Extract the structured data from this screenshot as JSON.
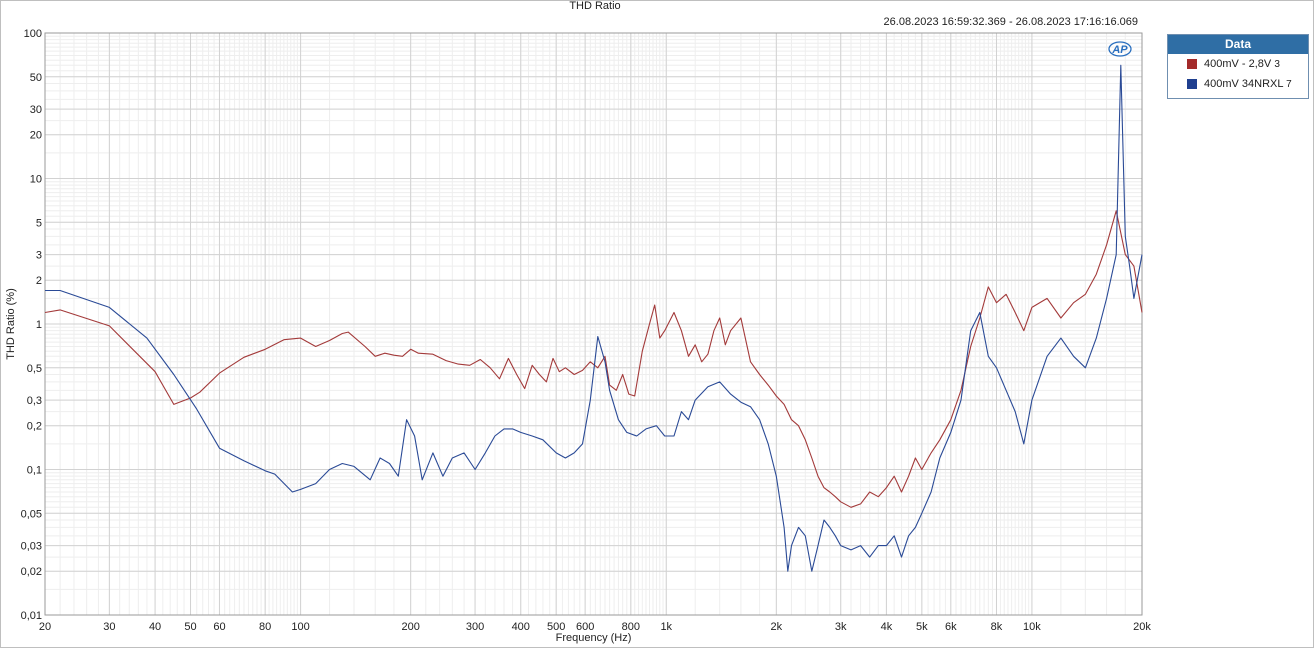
{
  "chart_data": {
    "type": "line",
    "title": "THD Ratio",
    "timestamp": "26.08.2023 16:59:32.369 - 26.08.2023 17:16:16.069",
    "xlabel": "Frequency (Hz)",
    "ylabel": "THD Ratio (%)",
    "x_scale": "log",
    "y_scale": "log",
    "xlim": [
      20,
      20000
    ],
    "ylim": [
      0.01,
      100
    ],
    "x_ticks": [
      {
        "v": 20,
        "l": "20"
      },
      {
        "v": 30,
        "l": "30"
      },
      {
        "v": 40,
        "l": "40"
      },
      {
        "v": 50,
        "l": "50"
      },
      {
        "v": 60,
        "l": "60"
      },
      {
        "v": 80,
        "l": "80"
      },
      {
        "v": 100,
        "l": "100"
      },
      {
        "v": 200,
        "l": "200"
      },
      {
        "v": 300,
        "l": "300"
      },
      {
        "v": 400,
        "l": "400"
      },
      {
        "v": 500,
        "l": "500"
      },
      {
        "v": 600,
        "l": "600"
      },
      {
        "v": 800,
        "l": "800"
      },
      {
        "v": 1000,
        "l": "1k"
      },
      {
        "v": 2000,
        "l": "2k"
      },
      {
        "v": 3000,
        "l": "3k"
      },
      {
        "v": 4000,
        "l": "4k"
      },
      {
        "v": 5000,
        "l": "5k"
      },
      {
        "v": 6000,
        "l": "6k"
      },
      {
        "v": 8000,
        "l": "8k"
      },
      {
        "v": 10000,
        "l": "10k"
      },
      {
        "v": 20000,
        "l": "20k"
      }
    ],
    "y_ticks": [
      {
        "v": 100,
        "l": "100"
      },
      {
        "v": 50,
        "l": "50"
      },
      {
        "v": 30,
        "l": "30"
      },
      {
        "v": 20,
        "l": "20"
      },
      {
        "v": 10,
        "l": "10"
      },
      {
        "v": 5,
        "l": "5"
      },
      {
        "v": 3,
        "l": "3"
      },
      {
        "v": 2,
        "l": "2"
      },
      {
        "v": 1,
        "l": "1"
      },
      {
        "v": 0.5,
        "l": "0,5"
      },
      {
        "v": 0.3,
        "l": "0,3"
      },
      {
        "v": 0.2,
        "l": "0,2"
      },
      {
        "v": 0.1,
        "l": "0,1"
      },
      {
        "v": 0.05,
        "l": "0,05"
      },
      {
        "v": 0.03,
        "l": "0,03"
      },
      {
        "v": 0.02,
        "l": "0,02"
      },
      {
        "v": 0.01,
        "l": "0,01"
      }
    ],
    "grid": true,
    "legend": {
      "title": "Data",
      "position": "right"
    },
    "series": [
      {
        "name": "400mV - 2,8V",
        "suffix": "3",
        "color": "#a33a3a",
        "points": [
          [
            20,
            1.2
          ],
          [
            22,
            1.25
          ],
          [
            30,
            0.97
          ],
          [
            40,
            0.47
          ],
          [
            45,
            0.28
          ],
          [
            50,
            0.31
          ],
          [
            53,
            0.34
          ],
          [
            60,
            0.46
          ],
          [
            70,
            0.59
          ],
          [
            80,
            0.67
          ],
          [
            90,
            0.78
          ],
          [
            100,
            0.8
          ],
          [
            110,
            0.7
          ],
          [
            120,
            0.77
          ],
          [
            130,
            0.86
          ],
          [
            135,
            0.88
          ],
          [
            150,
            0.7
          ],
          [
            160,
            0.6
          ],
          [
            170,
            0.63
          ],
          [
            180,
            0.61
          ],
          [
            190,
            0.6
          ],
          [
            200,
            0.67
          ],
          [
            210,
            0.63
          ],
          [
            230,
            0.62
          ],
          [
            250,
            0.56
          ],
          [
            270,
            0.53
          ],
          [
            290,
            0.52
          ],
          [
            310,
            0.57
          ],
          [
            330,
            0.5
          ],
          [
            350,
            0.42
          ],
          [
            370,
            0.58
          ],
          [
            390,
            0.45
          ],
          [
            410,
            0.36
          ],
          [
            430,
            0.52
          ],
          [
            450,
            0.45
          ],
          [
            470,
            0.4
          ],
          [
            490,
            0.58
          ],
          [
            510,
            0.47
          ],
          [
            530,
            0.5
          ],
          [
            560,
            0.45
          ],
          [
            590,
            0.48
          ],
          [
            620,
            0.55
          ],
          [
            650,
            0.5
          ],
          [
            680,
            0.6
          ],
          [
            700,
            0.38
          ],
          [
            730,
            0.35
          ],
          [
            760,
            0.45
          ],
          [
            790,
            0.33
          ],
          [
            820,
            0.32
          ],
          [
            860,
            0.65
          ],
          [
            900,
            1.0
          ],
          [
            930,
            1.35
          ],
          [
            960,
            0.8
          ],
          [
            990,
            0.9
          ],
          [
            1050,
            1.2
          ],
          [
            1100,
            0.9
          ],
          [
            1150,
            0.6
          ],
          [
            1200,
            0.72
          ],
          [
            1250,
            0.55
          ],
          [
            1300,
            0.62
          ],
          [
            1350,
            0.9
          ],
          [
            1400,
            1.1
          ],
          [
            1450,
            0.72
          ],
          [
            1500,
            0.9
          ],
          [
            1600,
            1.1
          ],
          [
            1700,
            0.55
          ],
          [
            1800,
            0.45
          ],
          [
            1900,
            0.38
          ],
          [
            2000,
            0.32
          ],
          [
            2100,
            0.28
          ],
          [
            2200,
            0.22
          ],
          [
            2300,
            0.2
          ],
          [
            2400,
            0.16
          ],
          [
            2500,
            0.12
          ],
          [
            2600,
            0.09
          ],
          [
            2700,
            0.075
          ],
          [
            2800,
            0.07
          ],
          [
            2900,
            0.065
          ],
          [
            3000,
            0.06
          ],
          [
            3200,
            0.055
          ],
          [
            3400,
            0.058
          ],
          [
            3600,
            0.07
          ],
          [
            3800,
            0.065
          ],
          [
            4000,
            0.075
          ],
          [
            4200,
            0.09
          ],
          [
            4400,
            0.07
          ],
          [
            4600,
            0.09
          ],
          [
            4800,
            0.12
          ],
          [
            5000,
            0.1
          ],
          [
            5300,
            0.13
          ],
          [
            5600,
            0.16
          ],
          [
            6000,
            0.22
          ],
          [
            6400,
            0.35
          ],
          [
            6800,
            0.7
          ],
          [
            7200,
            1.1
          ],
          [
            7600,
            1.8
          ],
          [
            8000,
            1.4
          ],
          [
            8500,
            1.6
          ],
          [
            9000,
            1.2
          ],
          [
            9500,
            0.9
          ],
          [
            10000,
            1.3
          ],
          [
            11000,
            1.5
          ],
          [
            12000,
            1.1
          ],
          [
            13000,
            1.4
          ],
          [
            14000,
            1.6
          ],
          [
            15000,
            2.2
          ],
          [
            16000,
            3.5
          ],
          [
            17000,
            6
          ],
          [
            18000,
            3
          ],
          [
            19000,
            2.5
          ],
          [
            20000,
            1.2
          ]
        ]
      },
      {
        "name": "400mV 34NRXL",
        "suffix": "7",
        "color": "#2a4a96",
        "points": [
          [
            20,
            1.7
          ],
          [
            22,
            1.7
          ],
          [
            30,
            1.3
          ],
          [
            38,
            0.8
          ],
          [
            45,
            0.45
          ],
          [
            52,
            0.26
          ],
          [
            60,
            0.14
          ],
          [
            70,
            0.115
          ],
          [
            80,
            0.098
          ],
          [
            85,
            0.093
          ],
          [
            95,
            0.07
          ],
          [
            100,
            0.073
          ],
          [
            110,
            0.08
          ],
          [
            120,
            0.1
          ],
          [
            130,
            0.11
          ],
          [
            140,
            0.105
          ],
          [
            155,
            0.085
          ],
          [
            165,
            0.12
          ],
          [
            175,
            0.11
          ],
          [
            185,
            0.09
          ],
          [
            195,
            0.22
          ],
          [
            205,
            0.17
          ],
          [
            215,
            0.085
          ],
          [
            230,
            0.13
          ],
          [
            245,
            0.09
          ],
          [
            260,
            0.12
          ],
          [
            280,
            0.13
          ],
          [
            300,
            0.1
          ],
          [
            320,
            0.13
          ],
          [
            340,
            0.17
          ],
          [
            360,
            0.19
          ],
          [
            380,
            0.19
          ],
          [
            400,
            0.18
          ],
          [
            430,
            0.17
          ],
          [
            460,
            0.16
          ],
          [
            500,
            0.13
          ],
          [
            530,
            0.12
          ],
          [
            560,
            0.13
          ],
          [
            590,
            0.15
          ],
          [
            620,
            0.3
          ],
          [
            650,
            0.82
          ],
          [
            680,
            0.55
          ],
          [
            700,
            0.35
          ],
          [
            740,
            0.22
          ],
          [
            780,
            0.18
          ],
          [
            830,
            0.17
          ],
          [
            880,
            0.19
          ],
          [
            940,
            0.2
          ],
          [
            990,
            0.17
          ],
          [
            1050,
            0.17
          ],
          [
            1100,
            0.25
          ],
          [
            1150,
            0.22
          ],
          [
            1200,
            0.3
          ],
          [
            1300,
            0.37
          ],
          [
            1400,
            0.4
          ],
          [
            1500,
            0.33
          ],
          [
            1600,
            0.29
          ],
          [
            1700,
            0.27
          ],
          [
            1800,
            0.22
          ],
          [
            1900,
            0.15
          ],
          [
            2000,
            0.09
          ],
          [
            2100,
            0.04
          ],
          [
            2150,
            0.02
          ],
          [
            2200,
            0.03
          ],
          [
            2300,
            0.04
          ],
          [
            2400,
            0.035
          ],
          [
            2500,
            0.02
          ],
          [
            2600,
            0.03
          ],
          [
            2700,
            0.045
          ],
          [
            2800,
            0.04
          ],
          [
            2900,
            0.035
          ],
          [
            3000,
            0.03
          ],
          [
            3200,
            0.028
          ],
          [
            3400,
            0.03
          ],
          [
            3600,
            0.025
          ],
          [
            3800,
            0.03
          ],
          [
            4000,
            0.03
          ],
          [
            4200,
            0.035
          ],
          [
            4400,
            0.025
          ],
          [
            4600,
            0.035
          ],
          [
            4800,
            0.04
          ],
          [
            5000,
            0.05
          ],
          [
            5300,
            0.07
          ],
          [
            5600,
            0.12
          ],
          [
            6000,
            0.18
          ],
          [
            6400,
            0.3
          ],
          [
            6800,
            0.9
          ],
          [
            7200,
            1.2
          ],
          [
            7600,
            0.6
          ],
          [
            8000,
            0.5
          ],
          [
            8500,
            0.35
          ],
          [
            9000,
            0.25
          ],
          [
            9500,
            0.15
          ],
          [
            10000,
            0.3
          ],
          [
            11000,
            0.6
          ],
          [
            12000,
            0.8
          ],
          [
            13000,
            0.6
          ],
          [
            14000,
            0.5
          ],
          [
            15000,
            0.8
          ],
          [
            16000,
            1.5
          ],
          [
            17000,
            3
          ],
          [
            17500,
            60
          ],
          [
            18000,
            4
          ],
          [
            18500,
            2.5
          ],
          [
            19000,
            1.5
          ],
          [
            20000,
            3
          ]
        ]
      }
    ]
  },
  "logo": "AP"
}
